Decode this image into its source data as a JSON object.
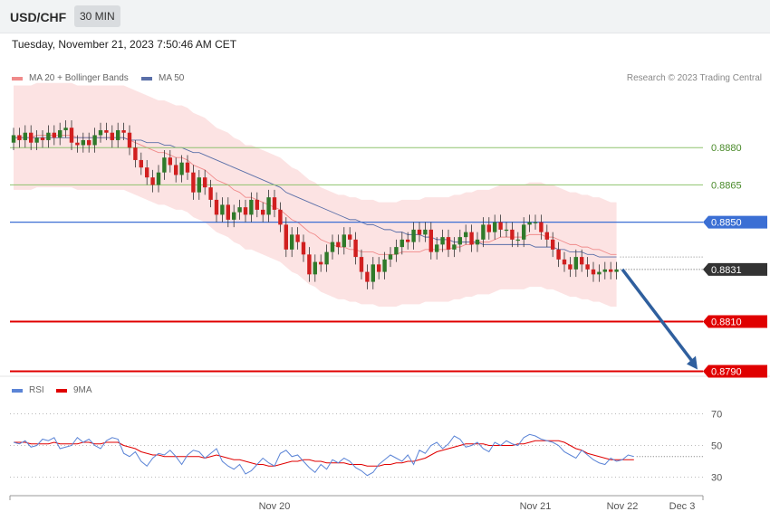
{
  "header": {
    "pair": "USD/CHF",
    "timeframe": "30 MIN"
  },
  "datetime": "Tuesday, November 21, 2023 7:50:46 AM CET",
  "copyright": "Research © 2023 Trading Central",
  "colors": {
    "bullish": "#2f7a2a",
    "bearish": "#d11f1f",
    "band": "#fbd9d9",
    "ma20": "#f08a8a",
    "ma50": "#5a6fa8",
    "support": "#e00000",
    "pivot": "#3b6fd4",
    "resistance": "#8ec26e",
    "last": "#333333",
    "rsi": "#5b84d6",
    "rsi_ma": "#e00000"
  },
  "chart_data": [
    {
      "type": "candlestick",
      "title": "",
      "legend": [
        "MA 20 + Bollinger Bands",
        "MA 50"
      ],
      "legend_placement": "top-left",
      "ylim": [
        0.8788,
        0.8903
      ],
      "x_ticks": [
        "Nov 20",
        "Nov 21",
        "Nov 22",
        "Dec 3"
      ],
      "levels": [
        {
          "label": "0.8880",
          "value": 0.888,
          "kind": "resistance"
        },
        {
          "label": "0.8865",
          "value": 0.8865,
          "kind": "resistance"
        },
        {
          "label": "0.8850",
          "value": 0.885,
          "kind": "pivot"
        },
        {
          "label": "0.8831",
          "value": 0.8831,
          "kind": "last"
        },
        {
          "label": "0.8810",
          "value": 0.881,
          "kind": "support"
        },
        {
          "label": "0.8790",
          "value": 0.879,
          "kind": "support"
        }
      ],
      "closes": [
        0.8885,
        0.8883,
        0.8886,
        0.8882,
        0.8884,
        0.8883,
        0.8886,
        0.8884,
        0.8887,
        0.8888,
        0.8882,
        0.8881,
        0.8883,
        0.8881,
        0.8885,
        0.8887,
        0.8886,
        0.8883,
        0.8887,
        0.8886,
        0.888,
        0.8875,
        0.8872,
        0.8868,
        0.8865,
        0.887,
        0.8876,
        0.8873,
        0.8869,
        0.8874,
        0.887,
        0.8862,
        0.8868,
        0.8864,
        0.8859,
        0.8853,
        0.8857,
        0.8851,
        0.8854,
        0.8856,
        0.8853,
        0.8859,
        0.8855,
        0.8853,
        0.886,
        0.8855,
        0.8849,
        0.8839,
        0.8845,
        0.8842,
        0.8837,
        0.8829,
        0.8834,
        0.8833,
        0.8838,
        0.8842,
        0.884,
        0.8845,
        0.8843,
        0.8836,
        0.883,
        0.8826,
        0.8833,
        0.883,
        0.8835,
        0.8837,
        0.884,
        0.8843,
        0.8842,
        0.8847,
        0.8845,
        0.8847,
        0.8838,
        0.8841,
        0.8844,
        0.8839,
        0.8841,
        0.8844,
        0.8846,
        0.8841,
        0.8843,
        0.8849,
        0.8846,
        0.885,
        0.8847,
        0.8847,
        0.8843,
        0.8843,
        0.8849,
        0.885,
        0.885,
        0.8846,
        0.8843,
        0.8839,
        0.8835,
        0.8833,
        0.8831,
        0.8836,
        0.8833,
        0.8831,
        0.8829,
        0.883,
        0.8831,
        0.883,
        0.8831
      ],
      "bb_mid": [
        0.8884,
        0.8884,
        0.8884,
        0.8884,
        0.8885,
        0.8885,
        0.8885,
        0.8885,
        0.8885,
        0.8885,
        0.8885,
        0.8884,
        0.8884,
        0.8884,
        0.8884,
        0.8884,
        0.8884,
        0.8884,
        0.8884,
        0.8884,
        0.8883,
        0.8882,
        0.8881,
        0.888,
        0.8879,
        0.8878,
        0.8878,
        0.8877,
        0.8876,
        0.8876,
        0.8875,
        0.8873,
        0.8872,
        0.8871,
        0.8869,
        0.8867,
        0.8866,
        0.8865,
        0.8863,
        0.8862,
        0.886,
        0.886,
        0.8859,
        0.8858,
        0.8857,
        0.8856,
        0.8855,
        0.8853,
        0.8851,
        0.885,
        0.8848,
        0.8846,
        0.8845,
        0.8843,
        0.8842,
        0.8841,
        0.884,
        0.884,
        0.8839,
        0.8839,
        0.8838,
        0.8838,
        0.8838,
        0.8837,
        0.8837,
        0.8837,
        0.8837,
        0.8838,
        0.8838,
        0.8838,
        0.8838,
        0.8839,
        0.8839,
        0.8839,
        0.8839,
        0.8839,
        0.884,
        0.884,
        0.8841,
        0.8841,
        0.8842,
        0.8842,
        0.8842,
        0.8843,
        0.8844,
        0.8844,
        0.8844,
        0.8844,
        0.8844,
        0.8845,
        0.8845,
        0.8845,
        0.8844,
        0.8844,
        0.8843,
        0.8842,
        0.8841,
        0.8841,
        0.884,
        0.884,
        0.8839,
        0.8839,
        0.8838,
        0.8837,
        0.8837
      ],
      "bb_half_width": 0.0021,
      "ma50": [
        0.8884,
        0.8884,
        0.8884,
        0.8884,
        0.8884,
        0.8884,
        0.8884,
        0.8884,
        0.8884,
        0.8884,
        0.8884,
        0.8884,
        0.8884,
        0.8884,
        0.8884,
        0.8884,
        0.8884,
        0.8884,
        0.8884,
        0.8884,
        0.8883,
        0.8883,
        0.8883,
        0.8882,
        0.8882,
        0.8882,
        0.8881,
        0.8881,
        0.888,
        0.888,
        0.8879,
        0.8878,
        0.8878,
        0.8877,
        0.8876,
        0.8875,
        0.8874,
        0.8873,
        0.8872,
        0.8871,
        0.887,
        0.8869,
        0.8868,
        0.8867,
        0.8866,
        0.8865,
        0.8864,
        0.8862,
        0.8861,
        0.886,
        0.8859,
        0.8858,
        0.8857,
        0.8856,
        0.8855,
        0.8854,
        0.8853,
        0.8852,
        0.8851,
        0.8851,
        0.885,
        0.8849,
        0.8849,
        0.8848,
        0.8847,
        0.8847,
        0.8846,
        0.8846,
        0.8845,
        0.8845,
        0.8845,
        0.8844,
        0.8844,
        0.8843,
        0.8843,
        0.8843,
        0.8842,
        0.8842,
        0.8842,
        0.8842,
        0.8842,
        0.8841,
        0.8841,
        0.8841,
        0.8841,
        0.8841,
        0.8841,
        0.8841,
        0.8841,
        0.8841,
        0.884,
        0.884,
        0.884,
        0.884,
        0.8839,
        0.8839,
        0.8838,
        0.8838,
        0.8838,
        0.8837,
        0.8837,
        0.8836,
        0.8836,
        0.8836,
        0.8836
      ],
      "forecast": {
        "from": 0.8831,
        "to": 0.879
      }
    },
    {
      "type": "line",
      "title": "",
      "legend": [
        "RSI",
        "9MA"
      ],
      "ylim": [
        20,
        80
      ],
      "y_ticks": [
        30,
        50,
        70
      ],
      "series": [
        {
          "name": "RSI",
          "values": [
            52,
            51,
            53,
            49,
            50,
            54,
            53,
            55,
            48,
            49,
            50,
            55,
            52,
            54,
            50,
            48,
            53,
            55,
            54,
            45,
            43,
            46,
            40,
            37,
            42,
            45,
            44,
            47,
            43,
            38,
            44,
            47,
            46,
            42,
            45,
            48,
            40,
            37,
            35,
            38,
            32,
            34,
            38,
            42,
            39,
            37,
            45,
            47,
            43,
            44,
            40,
            36,
            33,
            38,
            35,
            41,
            39,
            42,
            40,
            36,
            34,
            31,
            33,
            38,
            41,
            44,
            42,
            40,
            44,
            38,
            47,
            45,
            50,
            52,
            48,
            51,
            56,
            54,
            49,
            50,
            52,
            48,
            46,
            52,
            50,
            53,
            51,
            50,
            55,
            57,
            56,
            54,
            53,
            52,
            50,
            46,
            44,
            42,
            47,
            44,
            41,
            39,
            38,
            42,
            40,
            41,
            44,
            43
          ]
        },
        {
          "name": "9MA",
          "values": [
            52,
            52,
            52,
            51,
            51,
            51,
            51,
            52,
            51,
            51,
            51,
            51,
            52,
            52,
            51,
            51,
            52,
            52,
            52,
            50,
            49,
            48,
            46,
            45,
            44,
            44,
            43,
            43,
            43,
            43,
            43,
            43,
            43,
            42,
            43,
            44,
            43,
            42,
            41,
            41,
            40,
            39,
            38,
            38,
            37,
            37,
            38,
            39,
            40,
            40,
            41,
            41,
            40,
            40,
            39,
            39,
            39,
            39,
            38,
            38,
            38,
            37,
            37,
            37,
            38,
            38,
            39,
            39,
            40,
            40,
            41,
            42,
            44,
            46,
            47,
            48,
            49,
            50,
            51,
            51,
            51,
            51,
            50,
            50,
            50,
            50,
            50,
            51,
            51,
            52,
            53,
            53,
            53,
            53,
            53,
            52,
            50,
            48,
            47,
            45,
            44,
            43,
            42,
            41,
            41,
            41,
            41,
            41
          ]
        }
      ]
    }
  ]
}
